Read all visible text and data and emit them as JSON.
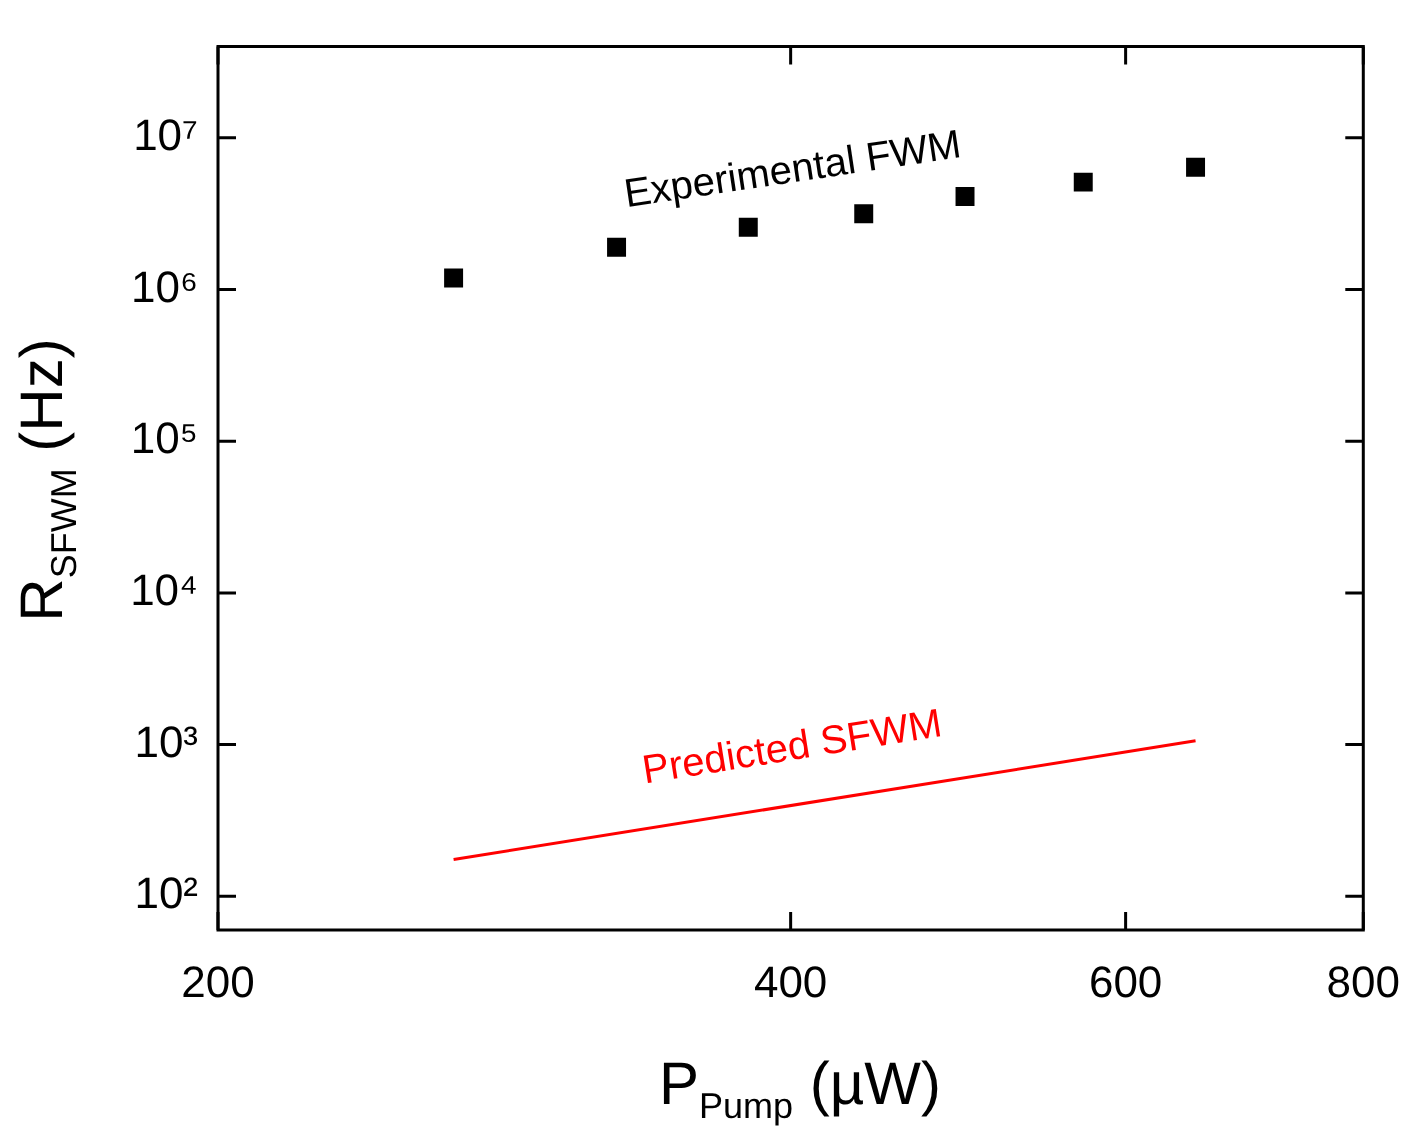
{
  "chart_data": {
    "type": "scatter",
    "xlabel": "P$_{Pump}$ (µW)",
    "ylabel": "R$_{SFWM}$ (Hz)",
    "log": "xy",
    "grid": false,
    "legend": false,
    "xlim": [
      200,
      800
    ],
    "xticks": [
      200,
      400,
      600,
      800
    ],
    "ylim": [
      60,
      40000000
    ],
    "yticks": [
      {
        "value": 100,
        "label": "10²"
      },
      {
        "value": 1000,
        "label": "10³"
      },
      {
        "value": 10000,
        "label": "10⁴"
      },
      {
        "value": 100000,
        "label": "10⁵"
      },
      {
        "value": 1000000,
        "label": "10⁶"
      },
      {
        "value": 10000000,
        "label": "10⁷"
      }
    ],
    "series": [
      {
        "name": "Experimental FWM",
        "marker": "square",
        "color": "#000000",
        "x": [
          266,
          324,
          380,
          437,
          494,
          570,
          653
        ],
        "values": [
          1190000,
          1900000,
          2570000,
          3160000,
          4100000,
          5100000,
          6400000
        ]
      },
      {
        "name": "Predicted SFWM",
        "type": "line",
        "marker": "none",
        "color": "#ff0000",
        "x": [
          266,
          653
        ],
        "values": [
          175,
          1060
        ]
      }
    ]
  }
}
